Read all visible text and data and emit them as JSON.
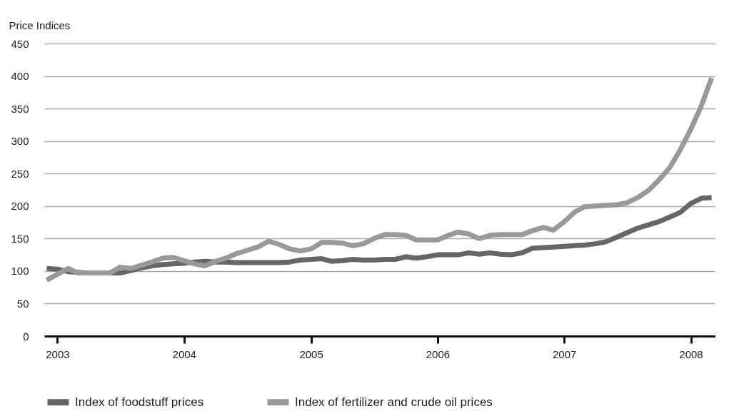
{
  "chart_data": {
    "type": "line",
    "ylabel": "Price Indices",
    "x": [
      "2002-12",
      "2003-01",
      "2003-02",
      "2003-03",
      "2003-04",
      "2003-05",
      "2003-06",
      "2003-07",
      "2003-08",
      "2003-09",
      "2003-10",
      "2003-11",
      "2003-12",
      "2004-01",
      "2004-02",
      "2004-03",
      "2004-04",
      "2004-05",
      "2004-06",
      "2004-07",
      "2004-08",
      "2004-09",
      "2004-10",
      "2004-11",
      "2004-12",
      "2005-01",
      "2005-02",
      "2005-03",
      "2005-04",
      "2005-05",
      "2005-06",
      "2005-07",
      "2005-08",
      "2005-09",
      "2005-10",
      "2005-11",
      "2005-12",
      "2006-01",
      "2006-02",
      "2006-03",
      "2006-04",
      "2006-05",
      "2006-06",
      "2006-07",
      "2006-08",
      "2006-09",
      "2006-10",
      "2006-11",
      "2006-12",
      "2007-01",
      "2007-02",
      "2007-03",
      "2007-04",
      "2007-05",
      "2007-06",
      "2007-07",
      "2007-08",
      "2007-09",
      "2007-10",
      "2007-11",
      "2007-12",
      "2008-01",
      "2008-02",
      "2008-03"
    ],
    "series": [
      {
        "name": "Index of foodstuff prices",
        "color": "#666666",
        "values": [
          104,
          103,
          99,
          98,
          97,
          97,
          97,
          97,
          101,
          105,
          108,
          110,
          111,
          112,
          114,
          115,
          114,
          114,
          113,
          113,
          113,
          113,
          113,
          114,
          117,
          118,
          119,
          115,
          116,
          118,
          117,
          117,
          118,
          118,
          122,
          120,
          122,
          125,
          125,
          125,
          128,
          126,
          128,
          126,
          125,
          128,
          135,
          136,
          137,
          138,
          139,
          140,
          142,
          145,
          152,
          159,
          166,
          171,
          176,
          183,
          190,
          204,
          212,
          213
        ]
      },
      {
        "name": "Index of fertilizer and crude oil prices",
        "color": "#999999",
        "values": [
          86,
          95,
          104,
          97,
          97,
          97,
          97,
          106,
          104,
          109,
          114,
          120,
          121,
          116,
          111,
          108,
          115,
          120,
          127,
          132,
          137,
          146,
          141,
          134,
          131,
          134,
          144,
          144,
          143,
          139,
          142,
          150,
          156,
          156,
          155,
          148,
          148,
          148,
          155,
          160,
          157,
          150,
          155,
          156,
          156,
          156,
          162,
          167,
          163,
          176,
          191,
          199,
          200,
          201,
          202,
          205,
          213,
          224,
          240,
          259,
          286,
          318,
          355,
          397
        ]
      }
    ],
    "xlim": [
      "2002-11-24",
      "2008-03-12"
    ],
    "xticks": [
      "2003",
      "2004",
      "2005",
      "2006",
      "2007",
      "2008"
    ],
    "ylim": [
      0,
      450
    ],
    "yticks": [
      0,
      50,
      100,
      150,
      200,
      250,
      300,
      350,
      400,
      450
    ],
    "grid": "y",
    "legend": "bottom",
    "marker": "none",
    "line_style": "solid"
  }
}
